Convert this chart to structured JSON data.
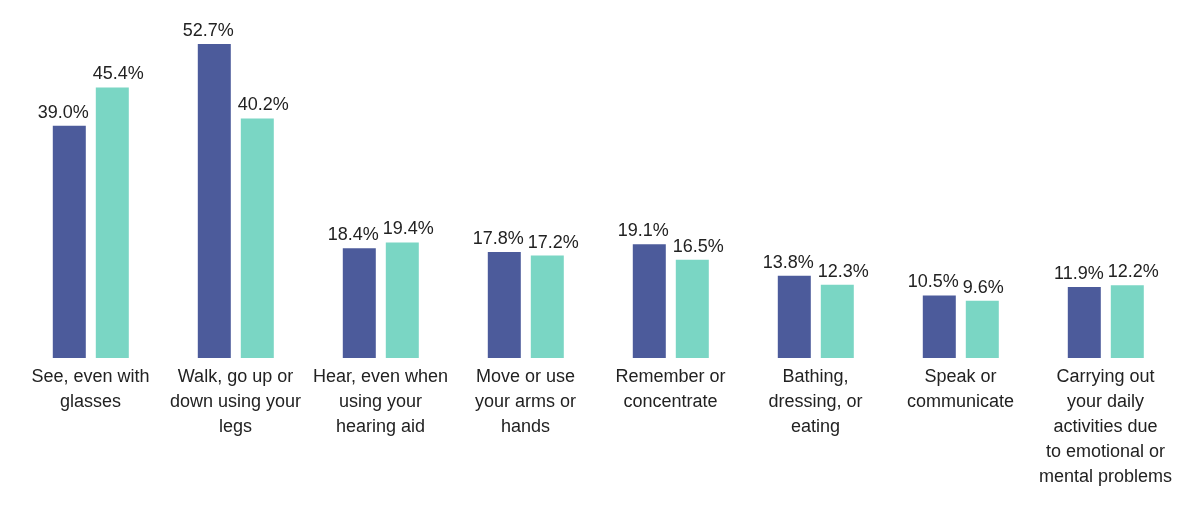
{
  "chart_data": {
    "type": "bar",
    "categories": [
      "See, even with glasses",
      "Walk, go up or down using your legs",
      "Hear, even when using your hearing aid",
      "Move or use your arms or hands",
      "Remember or concentrate",
      "Bathing, dressing, or eating",
      "Speak or communicate",
      "Carrying out your daily activities due to emotional or mental problems"
    ],
    "series": [
      {
        "color": "#4c5b9b",
        "values": [
          39.0,
          52.7,
          18.4,
          17.8,
          19.1,
          13.8,
          10.5,
          11.9
        ],
        "value_labels": [
          "39.0%",
          "52.7%",
          "18.4%",
          "17.8%",
          "19.1%",
          "13.8%",
          "10.5%",
          "11.9%"
        ]
      },
      {
        "color": "#7ad6c4",
        "values": [
          45.4,
          40.2,
          19.4,
          17.2,
          16.5,
          12.3,
          9.6,
          12.2
        ],
        "value_labels": [
          "45.4%",
          "40.2%",
          "19.4%",
          "17.2%",
          "16.5%",
          "12.3%",
          "9.6%",
          "12.2%"
        ]
      }
    ],
    "grid": false,
    "legend": false
  }
}
